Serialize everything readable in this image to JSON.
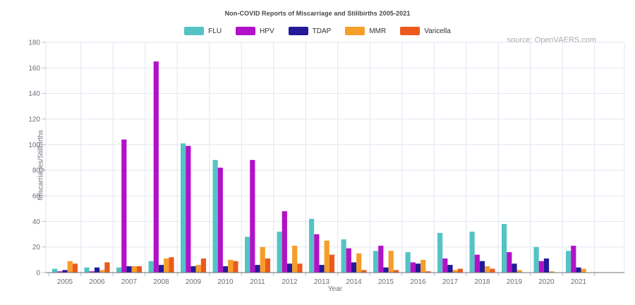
{
  "title": "Non-COVID Reports of Miscarriage and Stillbirths 2005-2021",
  "source": "source: OpenVAERS.com",
  "chart_data": {
    "type": "bar",
    "title": "Non-COVID Reports of Miscarriage and Stillbirths 2005-2021",
    "xlabel": "Year",
    "ylabel": "Miscarriages/Stillbirths",
    "ylim": [
      0,
      180
    ],
    "ytick_step": 20,
    "grid": true,
    "legend_position": "top-center",
    "categories": [
      "2005",
      "2006",
      "2007",
      "2008",
      "2009",
      "2010",
      "2011",
      "2012",
      "2013",
      "2014",
      "2015",
      "2016",
      "2017",
      "2018",
      "2019",
      "2020",
      "2021"
    ],
    "series": [
      {
        "name": "FLU",
        "color": "#55c3c5",
        "values": [
          3,
          4,
          4,
          9,
          101,
          88,
          28,
          32,
          42,
          26,
          17,
          16,
          31,
          32,
          38,
          20,
          17
        ]
      },
      {
        "name": "HPV",
        "color": "#b212c7",
        "values": [
          1,
          1,
          104,
          165,
          99,
          82,
          88,
          48,
          30,
          19,
          21,
          8,
          11,
          14,
          16,
          9,
          21
        ]
      },
      {
        "name": "TDAP",
        "color": "#221a99",
        "values": [
          2,
          4,
          5,
          6,
          5,
          5,
          6,
          7,
          6,
          8,
          4,
          7,
          6,
          9,
          7,
          11,
          4
        ]
      },
      {
        "name": "MMR",
        "color": "#f59e28",
        "values": [
          9,
          2,
          5,
          11,
          6,
          10,
          20,
          21,
          25,
          15,
          17,
          10,
          2,
          5,
          2,
          1,
          3
        ]
      },
      {
        "name": "Varicella",
        "color": "#eb5a1c",
        "values": [
          7,
          8,
          5,
          12,
          11,
          9,
          11,
          7,
          14,
          2,
          2,
          1,
          3,
          3,
          0,
          0,
          0
        ]
      }
    ]
  },
  "colors": {
    "grid": "#e0e6f1",
    "axis_line": "#6e7079",
    "tick_mark": "#b5b9c2",
    "tick_label": "#6e7079",
    "title_text": "#464646",
    "source_text": "#ababab"
  }
}
